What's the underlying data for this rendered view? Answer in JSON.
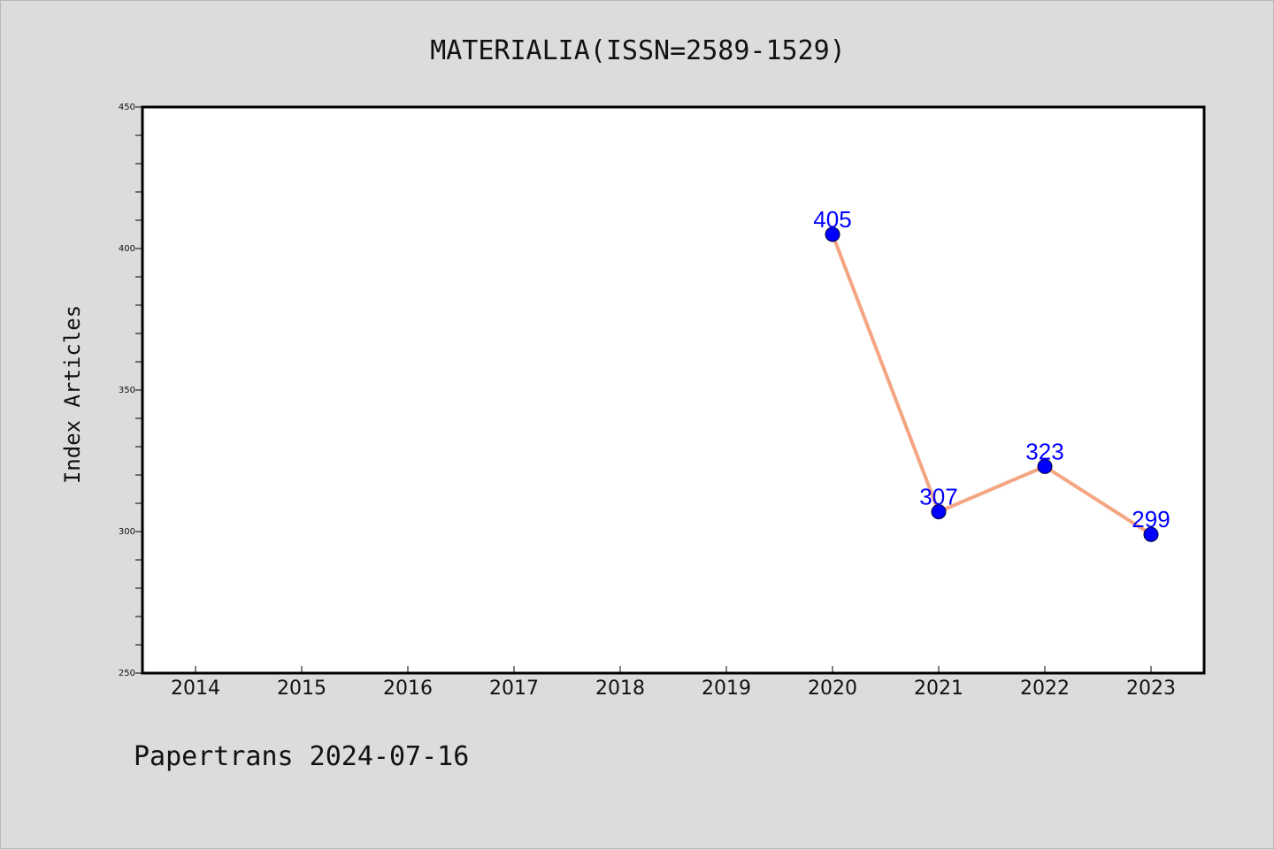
{
  "chart_data": {
    "type": "line",
    "title": "MATERIALIA(ISSN=2589-1529)",
    "ylabel": "Index Articles",
    "xlabel": "",
    "categories": [
      "2014",
      "2015",
      "2016",
      "2017",
      "2018",
      "2019",
      "2020",
      "2021",
      "2022",
      "2023"
    ],
    "y_ticks": [
      "250",
      "300",
      "350",
      "400",
      "450"
    ],
    "ylim": [
      250,
      450
    ],
    "series": [
      {
        "values": [
          null,
          null,
          null,
          null,
          null,
          null,
          405,
          307,
          323,
          299
        ],
        "labels": [
          null,
          null,
          null,
          null,
          null,
          null,
          "405",
          "307",
          "323",
          "299"
        ],
        "line_color": "#f4a582",
        "marker_color": "#0000ff",
        "label_color": "#0000ff"
      }
    ],
    "grid": false,
    "legend": "none"
  },
  "footer": "Papertrans 2024-07-16"
}
